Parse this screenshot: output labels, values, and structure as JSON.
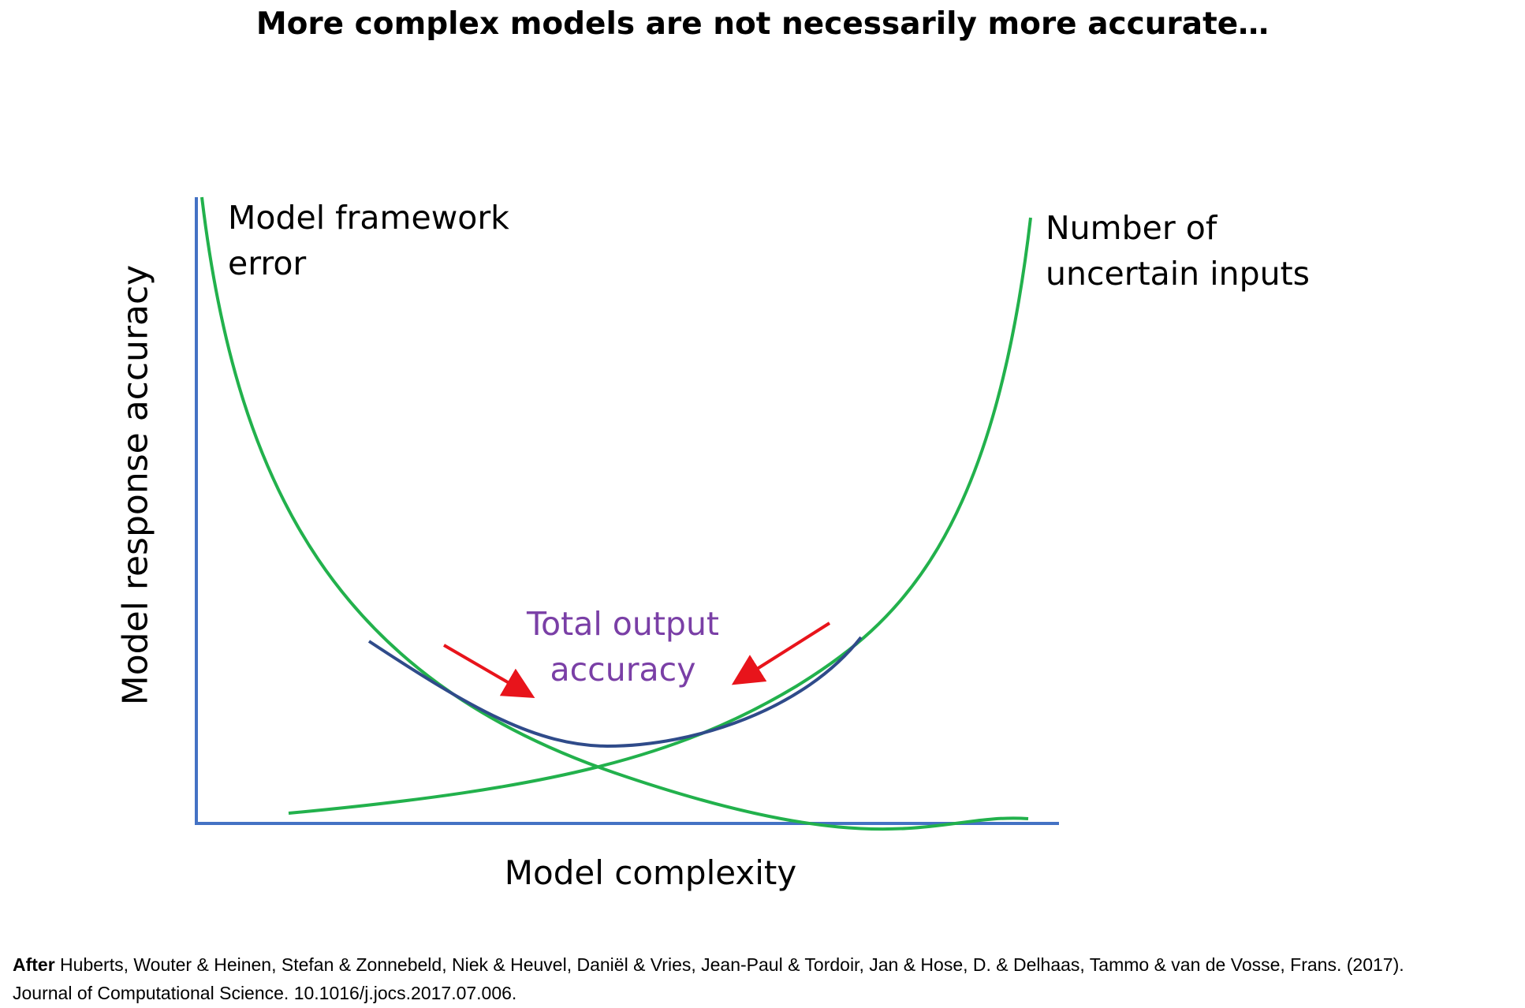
{
  "title": "More complex models are not necessarily more accurate…",
  "axes": {
    "y_label": "Model response accuracy",
    "x_label": "Model complexity"
  },
  "curves": {
    "framework_error": {
      "line1": "Model framework",
      "line2": "error"
    },
    "uncertain_inputs": {
      "line1": "Number of",
      "line2": "uncertain inputs"
    },
    "total_accuracy": {
      "line1": "Total output",
      "line2": "accuracy"
    }
  },
  "citation": {
    "prefix": "After",
    "line1": " Huberts, Wouter & Heinen, Stefan & Zonnebeld, Niek & Heuvel, Daniël & Vries, Jean-Paul & Tordoir, Jan & Hose, D. & Delhaas, Tammo & van de Vosse, Frans. (2017).",
    "line2": "Journal of Computational Science. 10.1016/j.jocs.2017.07.006."
  },
  "colors": {
    "axis": "#4472c4",
    "component_curves": "#22b14c",
    "total_curve": "#2f4b8a",
    "arrows": "#e8141b",
    "total_label": "#7a3fa6"
  }
}
